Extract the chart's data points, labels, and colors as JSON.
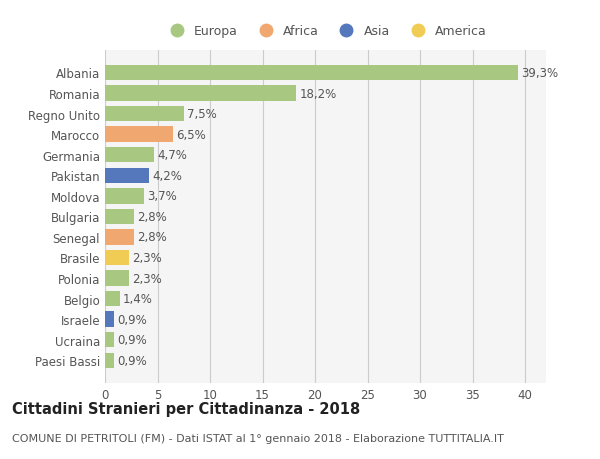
{
  "countries": [
    "Albania",
    "Romania",
    "Regno Unito",
    "Marocco",
    "Germania",
    "Pakistan",
    "Moldova",
    "Bulgaria",
    "Senegal",
    "Brasile",
    "Polonia",
    "Belgio",
    "Israele",
    "Ucraina",
    "Paesi Bassi"
  ],
  "values": [
    39.3,
    18.2,
    7.5,
    6.5,
    4.7,
    4.2,
    3.7,
    2.8,
    2.8,
    2.3,
    2.3,
    1.4,
    0.9,
    0.9,
    0.9
  ],
  "labels": [
    "39,3%",
    "18,2%",
    "7,5%",
    "6,5%",
    "4,7%",
    "4,2%",
    "3,7%",
    "2,8%",
    "2,8%",
    "2,3%",
    "2,3%",
    "1,4%",
    "0,9%",
    "0,9%",
    "0,9%"
  ],
  "continents": [
    "Europa",
    "Europa",
    "Europa",
    "Africa",
    "Europa",
    "Asia",
    "Europa",
    "Europa",
    "Africa",
    "America",
    "Europa",
    "Europa",
    "Asia",
    "Europa",
    "Europa"
  ],
  "continent_colors": {
    "Europa": "#a8c882",
    "Africa": "#f0a870",
    "Asia": "#5577bb",
    "America": "#f0cc55"
  },
  "legend_order": [
    "Europa",
    "Africa",
    "Asia",
    "America"
  ],
  "title_main": "Cittadini Stranieri per Cittadinanza - 2018",
  "title_sub": "COMUNE DI PETRITOLI (FM) - Dati ISTAT al 1° gennaio 2018 - Elaborazione TUTTITALIA.IT",
  "xlim": [
    0,
    42
  ],
  "xticks": [
    0,
    5,
    10,
    15,
    20,
    25,
    30,
    35,
    40
  ],
  "background_color": "#ffffff",
  "plot_bg_color": "#f5f5f5",
  "grid_color": "#cccccc",
  "bar_height": 0.75,
  "label_fontsize": 8.5,
  "tick_fontsize": 8.5,
  "title_fontsize": 10.5,
  "sub_fontsize": 8
}
